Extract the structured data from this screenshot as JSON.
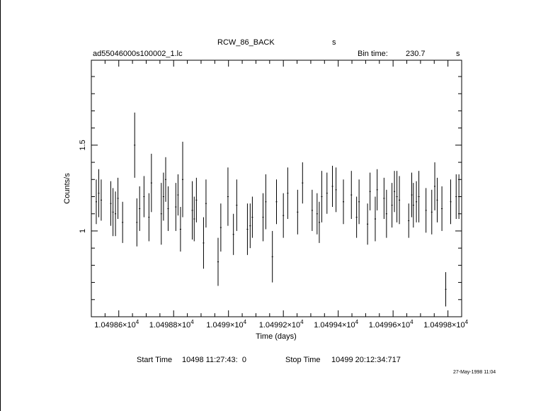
{
  "header": {
    "object": "RCW_86_BACK",
    "object_unit": "s",
    "filename": "ad55046000s100002_1.lc",
    "bin_label": "Bin time:",
    "bin_value": "230.7",
    "bin_unit": "s"
  },
  "footer": {
    "start_label": "Start Time",
    "start_value": "10498 11:27:43:  0",
    "stop_label": "Stop Time",
    "stop_value": "10499 20:12:34:717",
    "date_stamp": "27-May-1998 11:04"
  },
  "chart_data": {
    "type": "scatter",
    "title": "RCW_86_BACK",
    "xlabel": "Time (days)",
    "ylabel": "Counts/s",
    "xlim": [
      10498.5,
      10499.85
    ],
    "ylim": [
      0.5,
      1.995
    ],
    "x_ticks": [
      {
        "value": 10498.6,
        "mantissa": "1.04986",
        "exp": "4"
      },
      {
        "value": 10498.8,
        "mantissa": "1.04988",
        "exp": "4"
      },
      {
        "value": 10499.0,
        "mantissa": "1.0499",
        "exp": "4"
      },
      {
        "value": 10499.2,
        "mantissa": "1.04992",
        "exp": "4"
      },
      {
        "value": 10499.4,
        "mantissa": "1.04994",
        "exp": "4"
      },
      {
        "value": 10499.6,
        "mantissa": "1.04996",
        "exp": "4"
      },
      {
        "value": 10499.8,
        "mantissa": "1.04998",
        "exp": "4"
      }
    ],
    "y_ticks": [
      {
        "value": 1.0,
        "label": "1"
      },
      {
        "value": 1.5,
        "label": "1.5"
      }
    ],
    "grid": false,
    "legend": "none",
    "error_bars": "vertical",
    "series": [
      {
        "x": [
          10498.518,
          10498.527,
          10498.536,
          10498.571,
          10498.579,
          10498.588,
          10498.597,
          10498.614,
          10498.658,
          10498.666,
          10498.676,
          10498.692,
          10498.71,
          10498.719,
          10498.755,
          10498.763,
          10498.771,
          10498.78,
          10498.808,
          10498.816,
          10498.825,
          10498.833,
          10498.868,
          10498.875,
          10498.883,
          10498.909,
          10498.918,
          10498.962,
          10498.972,
          10498.998,
          10499.018,
          10499.03,
          10499.069,
          10499.079,
          10499.087,
          10499.126,
          10499.136,
          10499.16,
          10499.175,
          10499.2,
          10499.216,
          10499.252,
          10499.27,
          10499.305,
          10499.323,
          10499.331,
          10499.34,
          10499.359,
          10499.379,
          10499.392,
          10499.419,
          10499.448,
          10499.467,
          10499.476,
          10499.507,
          10499.516,
          10499.535,
          10499.542,
          10499.567,
          10499.576,
          10499.596,
          10499.605,
          10499.614,
          10499.623,
          10499.657,
          10499.668,
          10499.674,
          10499.685,
          10499.694,
          10499.72,
          10499.741,
          10499.752,
          10499.761,
          10499.778,
          10499.792,
          10499.81,
          10499.83,
          10499.84
        ],
        "y": [
          1.17,
          1.22,
          1.18,
          1.16,
          1.11,
          1.1,
          1.19,
          1.05,
          1.5,
          1.05,
          1.13,
          1.2,
          1.08,
          1.28,
          1.1,
          1.2,
          1.3,
          1.13,
          1.14,
          1.21,
          1.01,
          1.3,
          1.12,
          1.07,
          1.18,
          0.93,
          1.16,
          0.82,
          1.02,
          1.2,
          0.98,
          1.15,
          1.01,
          1.03,
          1.08,
          1.08,
          1.17,
          0.85,
          1.17,
          1.09,
          1.22,
          1.11,
          1.28,
          1.12,
          1.1,
          1.05,
          1.2,
          1.22,
          1.26,
          1.24,
          1.17,
          1.21,
          1.08,
          1.17,
          1.04,
          1.23,
          1.07,
          1.24,
          1.19,
          1.1,
          1.15,
          1.23,
          1.2,
          1.18,
          1.06,
          1.21,
          1.15,
          1.17,
          1.2,
          1.12,
          1.11,
          1.26,
          1.18,
          1.13,
          0.66,
          1.17,
          1.2,
          1.2
        ],
        "yerr": [
          0.13,
          0.14,
          0.12,
          0.13,
          0.14,
          0.13,
          0.12,
          0.12,
          0.19,
          0.14,
          0.13,
          0.12,
          0.14,
          0.17,
          0.18,
          0.14,
          0.13,
          0.13,
          0.14,
          0.12,
          0.13,
          0.22,
          0.17,
          0.13,
          0.13,
          0.15,
          0.14,
          0.14,
          0.14,
          0.17,
          0.12,
          0.15,
          0.15,
          0.13,
          0.12,
          0.14,
          0.16,
          0.15,
          0.13,
          0.13,
          0.15,
          0.13,
          0.12,
          0.12,
          0.12,
          0.12,
          0.15,
          0.12,
          0.12,
          0.13,
          0.13,
          0.14,
          0.12,
          0.13,
          0.12,
          0.11,
          0.13,
          0.12,
          0.12,
          0.14,
          0.13,
          0.12,
          0.15,
          0.14,
          0.1,
          0.13,
          0.13,
          0.12,
          0.15,
          0.13,
          0.13,
          0.14,
          0.13,
          0.13,
          0.1,
          0.13,
          0.13,
          0.13
        ]
      }
    ]
  }
}
